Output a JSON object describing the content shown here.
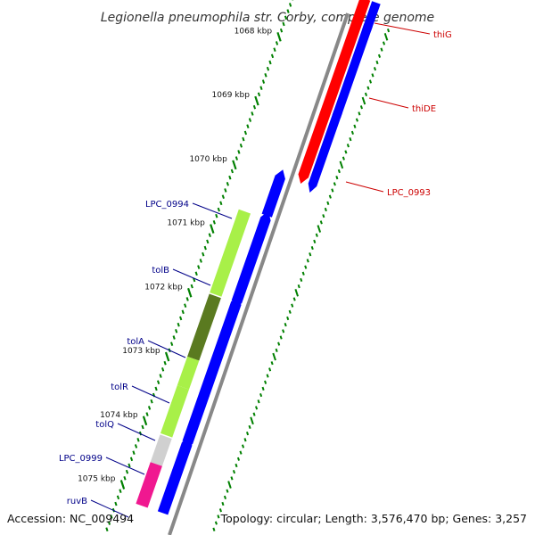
{
  "title": "Legionella pneumophila str. Corby, complete genome",
  "accession": "Accession: NC_009494",
  "topology": "Topology: circular; Length: 3,576,470 bp; Genes: 3,257",
  "scale": {
    "unit": "kbp",
    "major_ticks": [
      1068,
      1069,
      1070,
      1071,
      1072,
      1073,
      1074,
      1075
    ],
    "tick_labels": [
      "1068 kbp",
      "1069 kbp",
      "1070 kbp",
      "1071 kbp",
      "1072 kbp",
      "1073 kbp",
      "1074 kbp",
      "1075 kbp"
    ]
  },
  "colors": {
    "forward_strand": "#ff0000",
    "reverse_strand": "#0000ff",
    "gene_light_green": "#a8f048",
    "gene_dark_green": "#5a7a20",
    "gene_gray": "#d0d0d0",
    "gene_pink": "#f01890",
    "backbone": "#888888",
    "tick_color": "#008000",
    "label_red": "#cc0000",
    "label_blue": "#000088"
  },
  "genes": [
    {
      "name": "thiG",
      "strand": "forward",
      "start_kbp": 1067.35,
      "end_kbp": 1067.7,
      "color_key": "forward_strand"
    },
    {
      "name": "thiDE",
      "strand": "forward",
      "start_kbp": 1067.7,
      "end_kbp": 1069.05,
      "color_key": "forward_strand"
    },
    {
      "name": "LPC_0993",
      "strand": "forward",
      "start_kbp": 1069.05,
      "end_kbp": 1070.12,
      "color_key": "forward_strand"
    },
    {
      "name": "LPC_0994",
      "strand": "reverse",
      "start_kbp": 1070.25,
      "end_kbp": 1070.85,
      "color_key": "gene_light_green"
    },
    {
      "name": "tolB",
      "strand": "reverse",
      "start_kbp": 1070.9,
      "end_kbp": 1072.2,
      "color_key": "gene_light_green"
    },
    {
      "name": "tolA",
      "strand": "reverse",
      "start_kbp": 1072.22,
      "end_kbp": 1073.2,
      "color_key": "gene_dark_green"
    },
    {
      "name": "tolR",
      "strand": "reverse",
      "start_kbp": 1073.2,
      "end_kbp": 1073.65,
      "color_key": "gene_light_green"
    },
    {
      "name": "tolQ",
      "strand": "reverse",
      "start_kbp": 1073.65,
      "end_kbp": 1074.4,
      "color_key": "gene_light_green"
    },
    {
      "name": "LPC_0999",
      "strand": "reverse",
      "start_kbp": 1074.42,
      "end_kbp": 1074.85,
      "color_key": "gene_gray"
    },
    {
      "name": "ruvB",
      "strand": "reverse",
      "start_kbp": 1074.85,
      "end_kbp": 1075.5,
      "color_key": "gene_pink"
    }
  ]
}
